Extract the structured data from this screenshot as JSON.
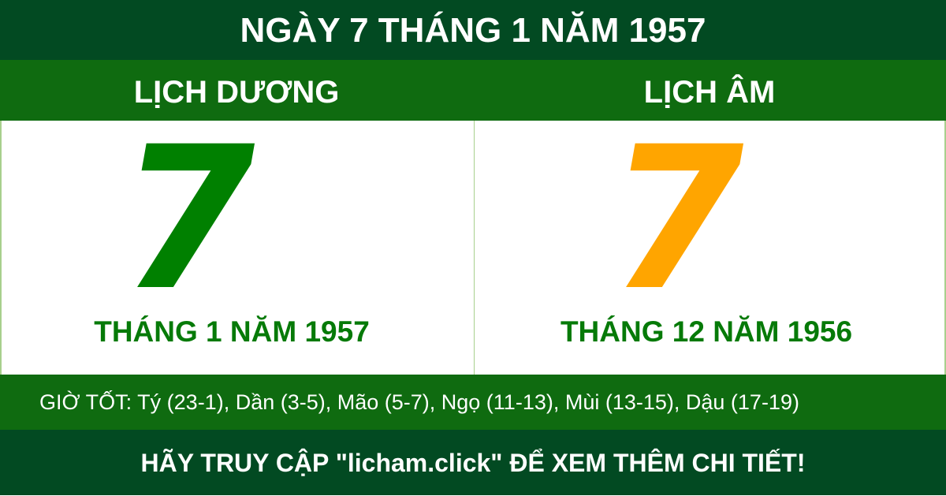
{
  "title": "NGÀY 7 THÁNG 1 NĂM 1957",
  "solar": {
    "heading": "LỊCH DƯƠNG",
    "day": "7",
    "month_year": "THÁNG 1 NĂM 1957",
    "color": "#008000"
  },
  "lunar": {
    "heading": "LỊCH ÂM",
    "day": "7",
    "month_year": "THÁNG 12 NĂM 1956",
    "color": "#ffa500"
  },
  "good_hours": "GIỜ TỐT: Tý (23-1), Dần (3-5), Mão (5-7), Ngọ (11-13), Mùi (13-15), Dậu (17-19)",
  "footer": "HÃY TRUY CẬP \"licham.click\" ĐỂ XEM THÊM CHI TIẾT!"
}
